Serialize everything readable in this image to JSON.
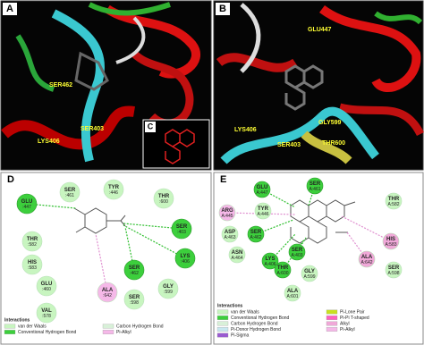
{
  "panels": {
    "a": {
      "label": "A",
      "annotations": [
        "SER462",
        "LYS406",
        "SER403"
      ]
    },
    "b": {
      "label": "B",
      "annotations": [
        "GLU447",
        "GLY599",
        "LYS406",
        "SER403",
        "THR600"
      ]
    },
    "c": {
      "label": "C"
    },
    "d": {
      "label": "D",
      "residues": [
        {
          "name": "GLU",
          "number": ":447"
        },
        {
          "name": "SER",
          "number": ":461"
        },
        {
          "name": "TYR",
          "number": ":446"
        },
        {
          "name": "THR",
          "number": ":600"
        },
        {
          "name": "THR",
          "number": ":582"
        },
        {
          "name": "HIS",
          "number": ":583"
        },
        {
          "name": "GLU",
          "number": ":460"
        },
        {
          "name": "VAL",
          "number": ":578"
        },
        {
          "name": "SER",
          "number": ":403"
        },
        {
          "name": "LYS",
          "number": ":406"
        },
        {
          "name": "SER",
          "number": ":462"
        },
        {
          "name": "GLY",
          "number": ":599"
        },
        {
          "name": "SER",
          "number": ":598"
        },
        {
          "name": "ALA",
          "number": ":642"
        }
      ],
      "legend_title": "Interactions",
      "legend": [
        "van der Waals",
        "Conventional Hydrogen Bond",
        "Carbon Hydrogen Bond",
        "Pi-Alkyl"
      ]
    },
    "e": {
      "label": "E",
      "residues": [
        {
          "name": "ARG",
          "number": "A:445"
        },
        {
          "name": "GLU",
          "number": "A:447"
        },
        {
          "name": "SER",
          "number": "A:461"
        },
        {
          "name": "TYR",
          "number": "A:446"
        },
        {
          "name": "ASP",
          "number": "A:463"
        },
        {
          "name": "SER",
          "number": "A:462"
        },
        {
          "name": "ASN",
          "number": "A:464"
        },
        {
          "name": "LYS",
          "number": "A:406"
        },
        {
          "name": "THR",
          "number": "A:600"
        },
        {
          "name": "SER",
          "number": "A:403"
        },
        {
          "name": "GLY",
          "number": "A:599"
        },
        {
          "name": "ALA",
          "number": "A:601"
        },
        {
          "name": "THR",
          "number": "A:582"
        },
        {
          "name": "HIS",
          "number": "A:583"
        },
        {
          "name": "SER",
          "number": "A:598"
        },
        {
          "name": "ALA",
          "number": "A:642"
        }
      ],
      "legend_title": "Interactions",
      "legend": [
        "van der Waals",
        "Conventional Hydrogen Bond",
        "Carbon Hydrogen Bond",
        "Pi-Donor Hydrogen Bond",
        "Pi-Sigma",
        "Pi-Lone Pair",
        "Pi-Pi T-shaped",
        "Alkyl",
        "Pi-Alkyl"
      ]
    }
  }
}
